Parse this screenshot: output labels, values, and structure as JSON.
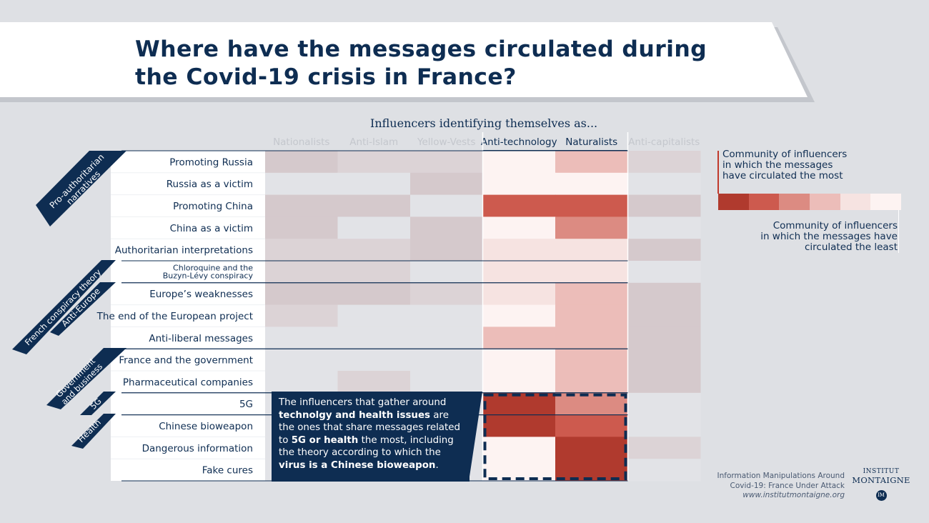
{
  "title_lines": [
    "Where have the messages circulated during",
    "the Covid-19 crisis in France?"
  ],
  "colors": {
    "navy": "#0e2d52",
    "background": "#dee0e4",
    "accent": "#c0392b",
    "scale": [
      "#b03a2e",
      "#cd5a4e",
      "#dc8b82",
      "#ecbdb9",
      "#f6e3e1",
      "#fdf3f2"
    ],
    "muted_scale": [
      "#d5c9cc",
      "#dcd3d6",
      "#e2e3e7"
    ]
  },
  "chart_data": {
    "type": "heatmap",
    "supertitle": "Influencers identifying themselves as...",
    "columns": [
      {
        "name": "Nationalists",
        "highlighted": false
      },
      {
        "name": "Anti-Islam",
        "highlighted": false
      },
      {
        "name": "Yellow-Vests",
        "highlighted": false
      },
      {
        "name": "Anti-technology",
        "highlighted": true
      },
      {
        "name": "Naturalists",
        "highlighted": true
      },
      {
        "name": "Anti-capitalists",
        "highlighted": false
      }
    ],
    "rows": [
      "Promoting Russia",
      "Russia as a victim",
      "Promoting China",
      "China as a victim",
      "Authoritarian interpretations",
      "Chloroquine and the Buzyn-Lévy conspiracy",
      "Europe’s weaknesses",
      "The end of the European project",
      "Anti-liberal messages",
      "France and the government",
      "Pharmaceutical companies",
      "5G",
      "Chinese bioweapon",
      "Dangerous information",
      "Fake cures"
    ],
    "scale_note": "levels 1 (circulated the most) to 6 (circulated the least)",
    "values": [
      [
        6,
        6,
        6,
        6,
        4,
        6
      ],
      [
        6,
        6,
        6,
        6,
        6,
        6
      ],
      [
        6,
        6,
        6,
        2,
        2,
        6
      ],
      [
        6,
        6,
        6,
        6,
        3,
        6
      ],
      [
        6,
        6,
        6,
        5,
        5,
        6
      ],
      [
        6,
        6,
        6,
        5,
        5,
        6
      ],
      [
        6,
        6,
        6,
        5,
        4,
        6
      ],
      [
        6,
        6,
        6,
        6,
        4,
        6
      ],
      [
        6,
        6,
        6,
        4,
        4,
        6
      ],
      [
        6,
        6,
        6,
        6,
        4,
        6
      ],
      [
        6,
        6,
        6,
        6,
        4,
        6
      ],
      [
        6,
        6,
        6,
        1,
        3,
        6
      ],
      [
        6,
        6,
        6,
        1,
        2,
        6
      ],
      [
        6,
        6,
        6,
        6,
        1,
        6
      ],
      [
        6,
        6,
        6,
        6,
        1,
        6
      ]
    ],
    "muted_shades": [
      [
        1,
        2,
        2,
        2
      ],
      [
        3,
        3,
        1,
        3
      ],
      [
        1,
        1,
        3,
        1
      ],
      [
        1,
        3,
        1,
        3
      ],
      [
        2,
        2,
        1,
        1
      ],
      [
        2,
        2,
        3,
        3
      ],
      [
        1,
        1,
        2,
        1
      ],
      [
        2,
        3,
        3,
        1
      ],
      [
        3,
        3,
        3,
        1
      ],
      [
        3,
        3,
        3,
        1
      ],
      [
        3,
        2,
        3,
        1
      ],
      [
        3,
        3,
        3,
        3
      ],
      [
        3,
        3,
        3,
        3
      ],
      [
        3,
        3,
        3,
        2
      ],
      [
        3,
        3,
        3,
        3
      ]
    ],
    "groups": [
      {
        "label_lines": [
          "Pro-authoritarian",
          "narratives"
        ],
        "rows": [
          0,
          4
        ]
      },
      {
        "label_lines": [
          "French conspiracy theory"
        ],
        "rows": [
          5,
          5
        ]
      },
      {
        "label_lines": [
          "Anti-Europe"
        ],
        "rows": [
          6,
          8
        ]
      },
      {
        "label_lines": [
          "Government",
          "and business"
        ],
        "rows": [
          9,
          10
        ]
      },
      {
        "label_lines": [
          "5G"
        ],
        "rows": [
          11,
          11
        ]
      },
      {
        "label_lines": [
          "Health"
        ],
        "rows": [
          12,
          14
        ]
      }
    ],
    "legend": {
      "max_label_lines": [
        "Community of influencers",
        "in which the messages",
        "have circulated the most"
      ],
      "min_label_lines": [
        "Community of influencers",
        "in which the messages have",
        "circulated the least"
      ]
    }
  },
  "callout": {
    "segments": [
      {
        "text": "The influencers that gather around ",
        "bold": false
      },
      {
        "text": "technolgy and health issues",
        "bold": true
      },
      {
        "text": " are the ones that share messages related to ",
        "bold": false
      },
      {
        "text": "5G or health",
        "bold": true
      },
      {
        "text": " the most, including the theory according to which the ",
        "bold": false
      },
      {
        "text": "virus is a Chinese bioweapon",
        "bold": true
      },
      {
        "text": ".",
        "bold": false
      }
    ]
  },
  "credit": {
    "line1": "Information Manipulations Around",
    "line2": "Covid-19: France Under Attack",
    "url": "www.institutmontaigne.org"
  },
  "logo": {
    "line1": "INSTITUT",
    "line2": "MONTAIGNE",
    "mark": "IM"
  }
}
